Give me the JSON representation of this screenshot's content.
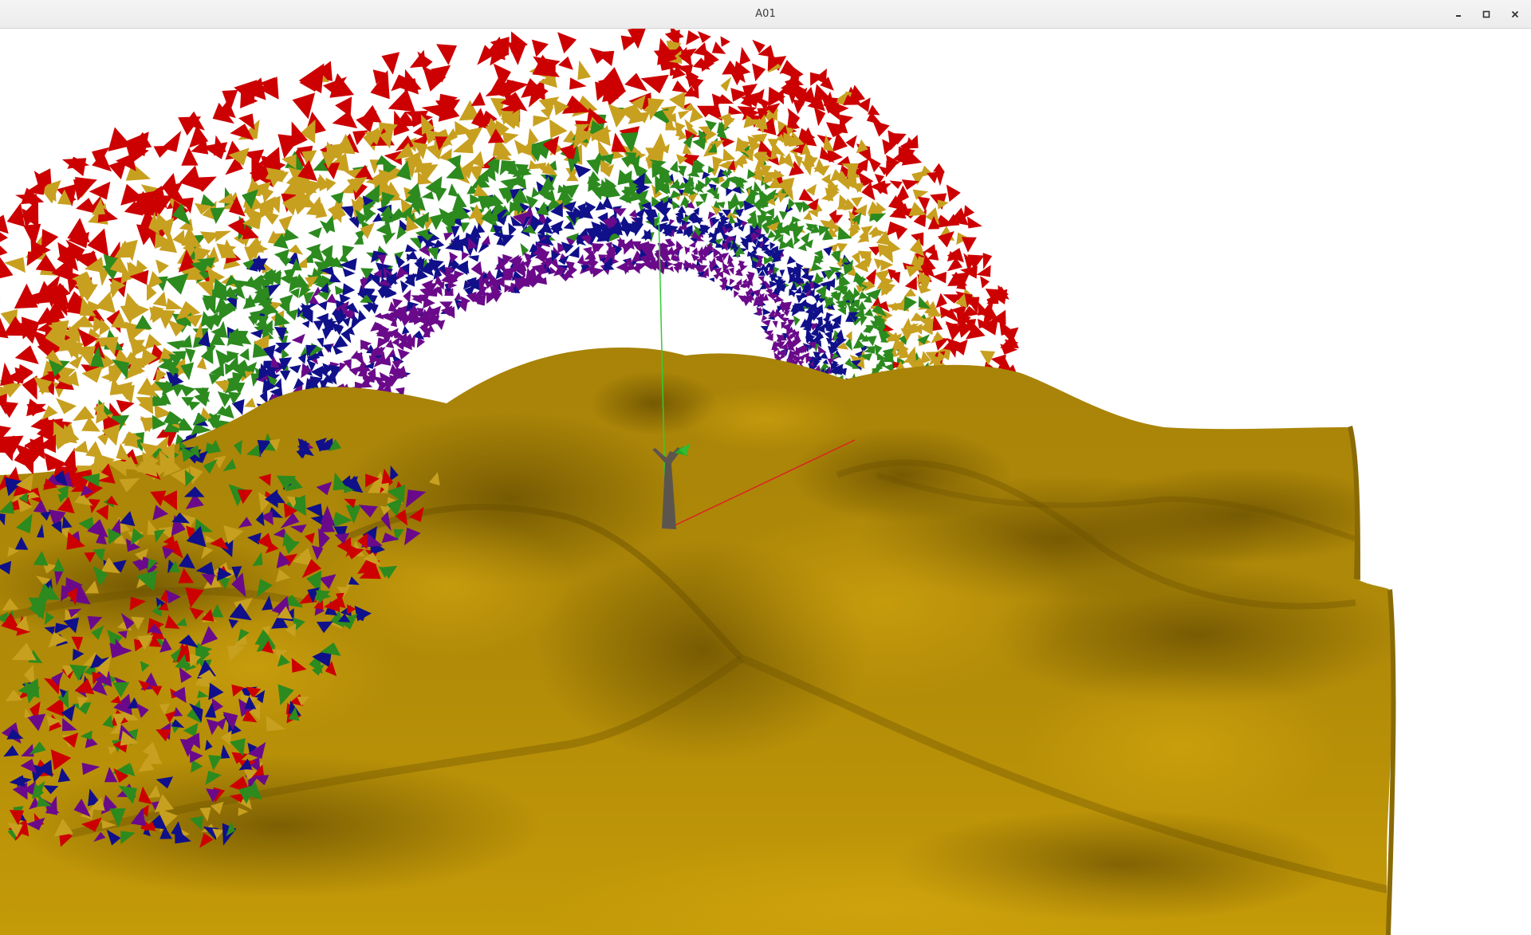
{
  "window": {
    "title": "A01",
    "controls": [
      {
        "name": "minimize",
        "icon": "minimize-icon"
      },
      {
        "name": "maximize",
        "icon": "maximize-icon"
      },
      {
        "name": "close",
        "icon": "close-icon"
      }
    ]
  },
  "scene": {
    "background": "#ffffff",
    "terrain_color": "#b8900a",
    "terrain_shadow": "#7a5d04",
    "tree_trunk_color": "#5c554e",
    "tree_leaf_color": "#22aa22",
    "axis_x_color": "#dd2222",
    "axis_y_color": "#33cc33",
    "leaf_palette": [
      "#cc0000",
      "#c8a020",
      "#2c8a1e",
      "#10108a",
      "#6a0a8a"
    ]
  }
}
